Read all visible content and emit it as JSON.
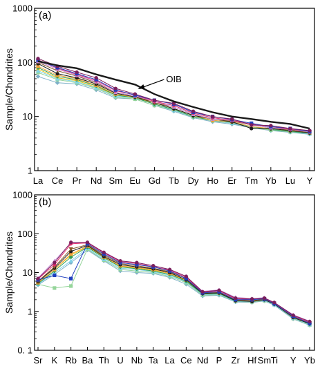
{
  "colors": {
    "reference": "#1a1a1a",
    "palette": [
      "#7a1f5c",
      "#1f3fbf",
      "#e3306f",
      "#c98fd9",
      "#8a5a2b",
      "#1a1a1a",
      "#f2a23c",
      "#2f9e55",
      "#7fd3e8",
      "#f0c419",
      "#95d59a",
      "#7db0c8"
    ]
  },
  "chart_data": [
    {
      "type": "line",
      "panel_label": "(a)",
      "ylabel": "Sample/Chondrites",
      "xlabel": "",
      "y_scale": "log",
      "ylim": [
        1,
        1000
      ],
      "y_ticks": [
        1,
        10,
        100,
        1000
      ],
      "y_tick_labels": [
        "1",
        "10",
        "100",
        "1000"
      ],
      "grid": false,
      "categories": [
        "La",
        "Ce",
        "Pr",
        "Nd",
        "Sm",
        "Eu",
        "Gd",
        "Tb",
        "Dy",
        "Ho",
        "Er",
        "Tm",
        "Yb",
        "Lu",
        "Y"
      ],
      "reference": {
        "name": "OIB",
        "values": [
          105,
          88,
          78,
          60,
          48,
          39,
          26,
          19,
          15,
          12,
          10,
          9,
          8,
          7.3,
          6
        ]
      },
      "annotations": [
        {
          "text": "OIB",
          "target_category": "Eu",
          "target_value": 34
        }
      ],
      "series": [
        {
          "values": [
            118,
            85,
            66,
            52,
            33,
            26,
            20,
            17.5,
            12.5,
            10,
            9,
            7,
            6.8,
            6,
            5.5
          ]
        },
        {
          "values": [
            110,
            80,
            62,
            48,
            31,
            25,
            20,
            17,
            12,
            10,
            8.8,
            7.5,
            6.5,
            6,
            5.3
          ]
        },
        {
          "values": [
            112,
            78,
            60,
            46,
            30,
            25,
            19,
            16,
            11.5,
            9.5,
            8.5,
            7.2,
            6.5,
            5.8,
            5.4
          ]
        },
        {
          "values": [
            105,
            75,
            58,
            44,
            28,
            24,
            19,
            15,
            11,
            9,
            8.5,
            7,
            6.2,
            5.8,
            5.2
          ]
        },
        {
          "values": [
            100,
            70,
            56,
            42,
            28,
            24,
            18,
            15,
            11,
            9,
            8.2,
            7,
            6.2,
            5.6,
            5.1
          ]
        },
        {
          "values": [
            95,
            62,
            52,
            40,
            27,
            23,
            18,
            14,
            10.5,
            9,
            8,
            6,
            6,
            5.5,
            5
          ]
        },
        {
          "values": [
            85,
            58,
            50,
            38,
            26,
            23,
            18,
            14,
            10.5,
            8.5,
            8,
            6.5,
            6,
            5.5,
            5
          ]
        },
        {
          "values": [
            80,
            55,
            48,
            37,
            25,
            22,
            17,
            13.5,
            10,
            8.5,
            7.8,
            6.5,
            5.8,
            5.3,
            4.9
          ]
        },
        {
          "values": [
            70,
            50,
            44,
            34,
            24,
            22,
            17,
            13,
            10,
            8.5,
            7.5,
            6.5,
            5.8,
            5.3,
            4.8
          ]
        },
        {
          "values": [
            75,
            52,
            46,
            35,
            25,
            23,
            17,
            13.5,
            10,
            8.5,
            7.8,
            6.5,
            5.8,
            5.4,
            4.9
          ]
        },
        {
          "values": [
            65,
            48,
            42,
            33,
            23,
            21,
            16,
            13,
            9.8,
            8.3,
            7.5,
            6.3,
            5.6,
            5.2,
            4.8
          ]
        },
        {
          "values": [
            55,
            42,
            40,
            31,
            22,
            21,
            16,
            12.5,
            9.5,
            8,
            7.2,
            6.2,
            5.5,
            5.1,
            4.7
          ]
        }
      ]
    },
    {
      "type": "line",
      "panel_label": "(b)",
      "ylabel": "Sample/Chondrites",
      "xlabel": "",
      "y_scale": "log",
      "ylim": [
        0.1,
        1000
      ],
      "y_ticks": [
        0.1,
        1,
        10,
        100,
        1000
      ],
      "y_tick_labels": [
        "0. 1",
        "1",
        "10",
        "100",
        "1000"
      ],
      "grid": false,
      "categories": [
        "Sr",
        "K",
        "Rb",
        "Ba",
        "Th",
        "U",
        "Nb",
        "Ta",
        "La",
        "Ce",
        "Nd",
        "P",
        "Zr",
        "Hf",
        "Sm",
        "Ti",
        "Y",
        "Yb"
      ],
      "category_positions": [
        0,
        1,
        2,
        3,
        4,
        5,
        6,
        7,
        8,
        9,
        10,
        11,
        12,
        13,
        13.75,
        14.35,
        15.5,
        16.5
      ],
      "series": [
        {
          "values": [
            7,
            18,
            60,
            60,
            33,
            20,
            18,
            15,
            12,
            8,
            3.2,
            3.5,
            2.2,
            2.1,
            2.2,
            1.7,
            0.8,
            0.55
          ]
        },
        {
          "values": [
            6.5,
            8.5,
            7,
            55,
            30,
            18,
            16,
            14,
            11,
            7,
            3,
            3.2,
            2,
            2,
            2.1,
            1.6,
            0.75,
            0.5
          ]
        },
        {
          "values": [
            6.8,
            16,
            55,
            58,
            32,
            19,
            17,
            14,
            11.5,
            7.5,
            3.1,
            3.4,
            2.1,
            2.05,
            2.15,
            1.65,
            0.78,
            0.52
          ]
        },
        {
          "values": [
            7.2,
            20,
            58,
            57,
            34,
            20,
            18,
            15,
            12,
            8,
            3.3,
            3.6,
            2.3,
            2.15,
            2.25,
            1.7,
            0.82,
            0.56
          ]
        },
        {
          "values": [
            6,
            14,
            40,
            52,
            28,
            17,
            15,
            13,
            10.5,
            7,
            3,
            3.1,
            2,
            1.9,
            2.05,
            1.6,
            0.72,
            0.5
          ]
        },
        {
          "values": [
            5.8,
            13,
            35,
            50,
            26,
            16,
            14,
            12.5,
            10,
            6.5,
            2.9,
            3,
            1.9,
            1.8,
            2,
            1.55,
            0.7,
            0.48
          ]
        },
        {
          "values": [
            5.5,
            12,
            30,
            48,
            25,
            15,
            13.5,
            12,
            9.5,
            6.5,
            2.9,
            3,
            1.9,
            1.9,
            2.05,
            1.6,
            0.72,
            0.5
          ]
        },
        {
          "values": [
            5.2,
            11,
            25,
            45,
            24,
            14,
            12.5,
            11,
            9,
            6,
            2.8,
            2.9,
            1.85,
            1.85,
            2,
            1.55,
            0.7,
            0.48
          ]
        },
        {
          "values": [
            5,
            10,
            20,
            42,
            22,
            13,
            12,
            10.5,
            8.5,
            5.8,
            2.7,
            2.8,
            1.8,
            1.8,
            1.95,
            1.5,
            0.68,
            0.46
          ]
        },
        {
          "values": [
            5.3,
            12,
            28,
            46,
            25,
            14.5,
            13,
            11.5,
            9.5,
            6.2,
            2.9,
            3,
            1.9,
            1.85,
            2.05,
            1.55,
            0.72,
            0.5
          ]
        },
        {
          "values": [
            5,
            4,
            4.5,
            40,
            21,
            12,
            11,
            10,
            8,
            5.5,
            2.6,
            2.7,
            1.8,
            1.75,
            1.9,
            1.5,
            0.66,
            0.45
          ]
        },
        {
          "values": [
            4.8,
            9,
            18,
            38,
            20,
            11,
            10,
            9.5,
            7.5,
            5,
            2.5,
            2.6,
            1.75,
            1.7,
            1.85,
            1.45,
            0.64,
            0.44
          ]
        }
      ]
    }
  ]
}
